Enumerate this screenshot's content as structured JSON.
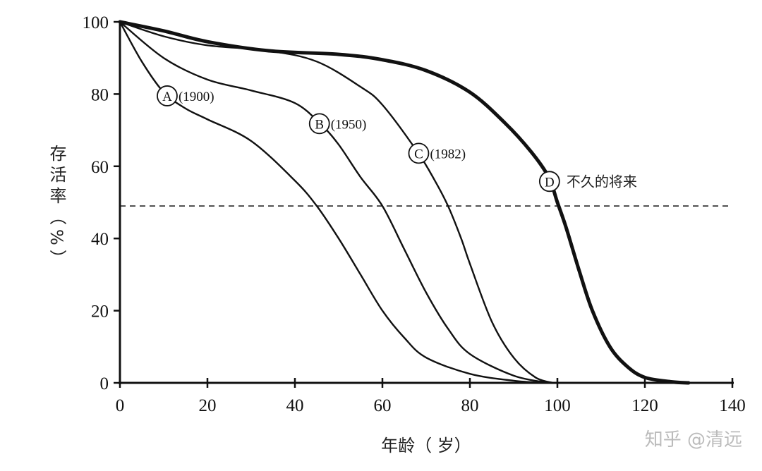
{
  "chart_data": {
    "type": "line",
    "title": "",
    "xlabel": "年龄（ 岁）",
    "ylabel": "存活率（%）",
    "xlim": [
      0,
      140
    ],
    "ylim": [
      0,
      100
    ],
    "xticks": [
      0,
      20,
      40,
      60,
      80,
      100,
      120,
      140
    ],
    "yticks": [
      0,
      20,
      40,
      60,
      80,
      100
    ],
    "grid": false,
    "reference_line": {
      "y": 49,
      "style": "dashed"
    },
    "series": [
      {
        "name": "A",
        "label": "(1900)",
        "marker": {
          "x": 10.8,
          "y": 79.5
        },
        "emphasis": false,
        "points": [
          [
            0,
            100
          ],
          [
            5,
            89
          ],
          [
            10,
            80.5
          ],
          [
            15,
            76
          ],
          [
            20,
            73
          ],
          [
            30,
            67
          ],
          [
            40,
            56
          ],
          [
            45,
            49
          ],
          [
            50,
            40
          ],
          [
            55,
            30
          ],
          [
            60,
            20
          ],
          [
            65,
            12.5
          ],
          [
            70,
            7
          ],
          [
            80,
            2.5
          ],
          [
            90,
            0.6
          ],
          [
            97,
            0
          ]
        ]
      },
      {
        "name": "B",
        "label": "(1950)",
        "marker": {
          "x": 45.6,
          "y": 71.8
        },
        "emphasis": false,
        "points": [
          [
            0,
            100
          ],
          [
            10,
            90
          ],
          [
            20,
            84
          ],
          [
            30,
            81
          ],
          [
            40,
            77.5
          ],
          [
            46,
            71.5
          ],
          [
            50,
            66
          ],
          [
            55,
            57
          ],
          [
            60,
            49
          ],
          [
            65,
            37
          ],
          [
            70,
            25
          ],
          [
            75,
            15
          ],
          [
            80,
            8
          ],
          [
            90,
            2
          ],
          [
            98,
            0
          ]
        ]
      },
      {
        "name": "C",
        "label": "(1982)",
        "marker": {
          "x": 68.3,
          "y": 63.6
        },
        "emphasis": false,
        "points": [
          [
            0,
            100
          ],
          [
            10,
            96
          ],
          [
            20,
            93.5
          ],
          [
            34,
            92
          ],
          [
            45,
            89
          ],
          [
            55,
            82
          ],
          [
            60,
            77
          ],
          [
            68,
            64
          ],
          [
            72,
            56
          ],
          [
            75,
            49
          ],
          [
            78,
            40
          ],
          [
            80,
            33
          ],
          [
            85,
            17
          ],
          [
            90,
            7
          ],
          [
            95,
            1.5
          ],
          [
            99,
            0
          ]
        ]
      },
      {
        "name": "D",
        "label": "不久的将来",
        "marker": {
          "x": 98.2,
          "y": 55.8
        },
        "emphasis": true,
        "points": [
          [
            0,
            100
          ],
          [
            10,
            97.5
          ],
          [
            20,
            94.5
          ],
          [
            34,
            92
          ],
          [
            50,
            91
          ],
          [
            60,
            89.5
          ],
          [
            70,
            86.5
          ],
          [
            80,
            80.5
          ],
          [
            88,
            72
          ],
          [
            94,
            64
          ],
          [
            98,
            57
          ],
          [
            100,
            50
          ],
          [
            102,
            43
          ],
          [
            105,
            31
          ],
          [
            108,
            20
          ],
          [
            112,
            10
          ],
          [
            116,
            4.5
          ],
          [
            120,
            1.5
          ],
          [
            126,
            0.3
          ],
          [
            130,
            0
          ]
        ]
      }
    ]
  },
  "watermark": "知乎 @清远"
}
